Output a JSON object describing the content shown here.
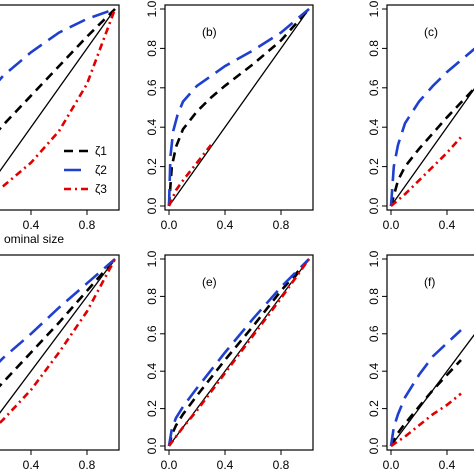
{
  "colors": {
    "zeta1": "#000000",
    "zeta2": "#1f3fcf",
    "zeta3": "#e00000",
    "diagonal": "#000000"
  },
  "xlabel": "Nominal size",
  "xlabel_visible": "ominal size",
  "chart_data": [
    {
      "type": "line",
      "panel": "a",
      "label": "",
      "xlim": [
        0,
        1
      ],
      "ylim": [
        0,
        1
      ],
      "x_ticks": [
        "0.4",
        "0.8"
      ],
      "y_ticks": [],
      "legend": {
        "placement": "bottom-right",
        "entries": [
          "ζ1",
          "ζ2",
          "ζ3"
        ]
      },
      "series": [
        {
          "name": "ζ1",
          "style": "dashed",
          "x": [
            0.0,
            0.1,
            0.2,
            0.4,
            0.6,
            0.8,
            1.0
          ],
          "y": [
            0.25,
            0.33,
            0.41,
            0.56,
            0.71,
            0.86,
            1.0
          ]
        },
        {
          "name": "ζ2",
          "style": "long-dashed",
          "x": [
            0.0,
            0.1,
            0.2,
            0.4,
            0.6,
            0.8,
            1.0
          ],
          "y": [
            0.5,
            0.58,
            0.66,
            0.78,
            0.88,
            0.95,
            1.0
          ]
        },
        {
          "name": "ζ3",
          "style": "dot-dash",
          "x": [
            0.0,
            0.2,
            0.4,
            0.6,
            0.8,
            1.0
          ],
          "y": [
            0.0,
            0.1,
            0.22,
            0.38,
            0.62,
            1.0
          ]
        }
      ]
    },
    {
      "type": "line",
      "panel": "b",
      "label": "(b)",
      "xlim": [
        0,
        1
      ],
      "ylim": [
        0,
        1
      ],
      "x_ticks": [
        "0.0",
        "0.4",
        "0.8"
      ],
      "y_ticks": [
        "0.0",
        "0.2",
        "0.4",
        "0.6",
        "0.8",
        "1.0"
      ],
      "series": [
        {
          "name": "ζ1",
          "style": "dashed",
          "x": [
            0.0,
            0.02,
            0.05,
            0.1,
            0.2,
            0.3,
            0.4,
            0.6,
            0.8,
            1.0
          ],
          "y": [
            0.0,
            0.2,
            0.3,
            0.39,
            0.48,
            0.55,
            0.61,
            0.72,
            0.84,
            1.0
          ]
        },
        {
          "name": "ζ2",
          "style": "long-dashed",
          "x": [
            0.0,
            0.01,
            0.03,
            0.06,
            0.1,
            0.2,
            0.3,
            0.4,
            0.6,
            0.8,
            1.0
          ],
          "y": [
            0.0,
            0.25,
            0.38,
            0.46,
            0.53,
            0.61,
            0.66,
            0.71,
            0.79,
            0.88,
            1.0
          ]
        },
        {
          "name": "ζ3",
          "style": "dot-dash",
          "x": [
            0.0,
            0.05,
            0.1,
            0.2,
            0.3
          ],
          "y": [
            0.0,
            0.08,
            0.13,
            0.22,
            0.31
          ]
        }
      ]
    },
    {
      "type": "line",
      "panel": "c",
      "label": "(c)",
      "xlim": [
        0,
        1
      ],
      "ylim": [
        0,
        1
      ],
      "x_ticks": [
        "0.0",
        "0.4"
      ],
      "y_ticks": [
        "0.0",
        "0.2",
        "0.4",
        "0.6",
        "0.8",
        "1.0"
      ],
      "series": [
        {
          "name": "ζ1",
          "style": "dashed",
          "x": [
            0.0,
            0.05,
            0.1,
            0.2,
            0.3,
            0.4,
            0.6,
            0.8,
            1.0
          ],
          "y": [
            0.0,
            0.13,
            0.2,
            0.29,
            0.37,
            0.45,
            0.6,
            0.76,
            1.0
          ]
        },
        {
          "name": "ζ2",
          "style": "long-dashed",
          "x": [
            0.0,
            0.02,
            0.05,
            0.1,
            0.2,
            0.3,
            0.4,
            0.6,
            0.8,
            1.0
          ],
          "y": [
            0.0,
            0.2,
            0.31,
            0.42,
            0.53,
            0.61,
            0.68,
            0.8,
            0.9,
            1.0
          ]
        },
        {
          "name": "ζ3",
          "style": "dot-dash",
          "x": [
            0.0,
            0.1,
            0.2,
            0.3,
            0.4,
            0.5
          ],
          "y": [
            0.0,
            0.06,
            0.13,
            0.2,
            0.27,
            0.35
          ]
        }
      ]
    },
    {
      "type": "line",
      "panel": "d",
      "label": "",
      "xlim": [
        0,
        1
      ],
      "ylim": [
        0,
        1
      ],
      "x_ticks": [
        "0.4",
        "0.8"
      ],
      "y_ticks": [],
      "series": [
        {
          "name": "ζ1",
          "style": "dashed",
          "x": [
            0.0,
            0.2,
            0.4,
            0.6,
            0.8,
            1.0
          ],
          "y": [
            0.18,
            0.34,
            0.5,
            0.66,
            0.83,
            1.0
          ]
        },
        {
          "name": "ζ2",
          "style": "long-dashed",
          "x": [
            0.0,
            0.2,
            0.4,
            0.6,
            0.8,
            1.0
          ],
          "y": [
            0.32,
            0.47,
            0.6,
            0.74,
            0.87,
            1.0
          ]
        },
        {
          "name": "ζ3",
          "style": "dot-dash",
          "x": [
            0.0,
            0.2,
            0.4,
            0.6,
            0.8,
            1.0
          ],
          "y": [
            0.0,
            0.14,
            0.3,
            0.5,
            0.72,
            1.0
          ]
        }
      ]
    },
    {
      "type": "line",
      "panel": "e",
      "label": "(e)",
      "xlim": [
        0,
        1
      ],
      "ylim": [
        0,
        1
      ],
      "x_ticks": [
        "0.0",
        "0.4",
        "0.8"
      ],
      "y_ticks": [
        "0.0",
        "0.2",
        "0.4",
        "0.6",
        "0.8",
        "1.0"
      ],
      "series": [
        {
          "name": "ζ1",
          "style": "dashed",
          "x": [
            0.0,
            0.02,
            0.05,
            0.1,
            0.2,
            0.4,
            0.6,
            0.8,
            1.0
          ],
          "y": [
            0.0,
            0.06,
            0.11,
            0.17,
            0.27,
            0.46,
            0.64,
            0.83,
            1.0
          ]
        },
        {
          "name": "ζ2",
          "style": "long-dashed",
          "x": [
            0.0,
            0.02,
            0.05,
            0.1,
            0.2,
            0.4,
            0.6,
            0.8,
            1.0
          ],
          "y": [
            0.0,
            0.09,
            0.15,
            0.21,
            0.31,
            0.5,
            0.68,
            0.85,
            1.0
          ]
        },
        {
          "name": "ζ3",
          "style": "dot-dash",
          "x": [
            0.0,
            0.05,
            0.1,
            0.2,
            0.4,
            0.6,
            0.8,
            1.0
          ],
          "y": [
            0.0,
            0.05,
            0.1,
            0.19,
            0.39,
            0.59,
            0.79,
            1.0
          ]
        }
      ]
    },
    {
      "type": "line",
      "panel": "f",
      "label": "(f)",
      "xlim": [
        0,
        1
      ],
      "ylim": [
        0,
        1
      ],
      "x_ticks": [
        "0.0",
        "0.4"
      ],
      "y_ticks": [
        "0.0",
        "0.2",
        "0.4",
        "0.6",
        "0.8",
        "1.0"
      ],
      "series": [
        {
          "name": "ζ1",
          "style": "dashed",
          "x": [
            0.0,
            0.05,
            0.1,
            0.2,
            0.3,
            0.4,
            0.5
          ],
          "y": [
            0.0,
            0.07,
            0.12,
            0.21,
            0.3,
            0.38,
            0.46
          ]
        },
        {
          "name": "ζ2",
          "style": "long-dashed",
          "x": [
            0.0,
            0.02,
            0.05,
            0.1,
            0.2,
            0.3,
            0.4,
            0.5
          ],
          "y": [
            0.0,
            0.1,
            0.17,
            0.26,
            0.38,
            0.48,
            0.55,
            0.62
          ]
        },
        {
          "name": "ζ3",
          "style": "dot-dash",
          "x": [
            0.0,
            0.1,
            0.2,
            0.3,
            0.4,
            0.5
          ],
          "y": [
            0.0,
            0.05,
            0.11,
            0.17,
            0.22,
            0.28
          ]
        }
      ]
    }
  ]
}
